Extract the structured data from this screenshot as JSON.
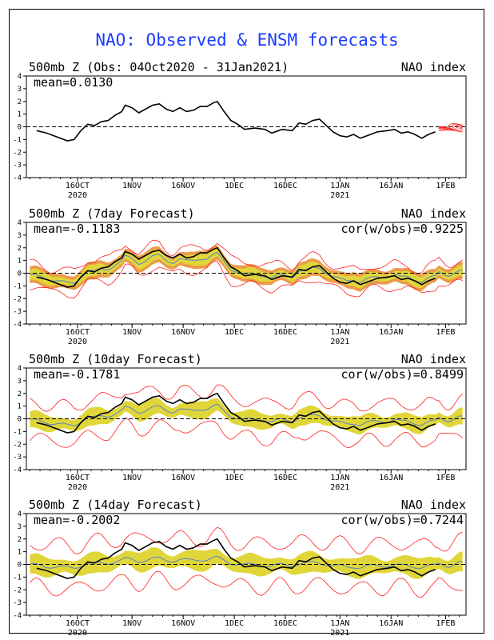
{
  "title": "NAO: Observed & ENSM forecasts",
  "colors": {
    "title": "#1a3bff",
    "observed": "#000000",
    "members": "#ff2020",
    "spread": "#e0d63a",
    "ensemble_mean": "#5a82c8",
    "outer_band": "#e88a2a",
    "zero_line": "#000000"
  },
  "x_axis": {
    "xlim": [
      0,
      129
    ],
    "ticks": [
      {
        "x": 15,
        "label": "16OCT",
        "year": "2020"
      },
      {
        "x": 31,
        "label": "1NOV",
        "year": ""
      },
      {
        "x": 46,
        "label": "16NOV",
        "year": ""
      },
      {
        "x": 61,
        "label": "1DEC",
        "year": ""
      },
      {
        "x": 76,
        "label": "16DEC",
        "year": ""
      },
      {
        "x": 92,
        "label": "1JAN",
        "year": "2021"
      },
      {
        "x": 107,
        "label": "16JAN",
        "year": ""
      },
      {
        "x": 123,
        "label": "1FEB",
        "year": ""
      }
    ]
  },
  "chart_data": [
    {
      "type": "line",
      "title": "500mb Z (Obs: 04Oct2020 - 31Jan2021)",
      "index_label": "NAO index",
      "mean_label": "mean=0.0130",
      "cor_label": "",
      "ylim": [
        -4,
        4
      ],
      "yticks": [
        4,
        3,
        2,
        1,
        0,
        -1,
        -2,
        -3,
        -4
      ],
      "series": [
        {
          "kind": "observed",
          "points": [
            [
              3,
              -0.3
            ],
            [
              6,
              -0.5
            ],
            [
              9,
              -0.8
            ],
            [
              12,
              -1.1
            ],
            [
              14,
              -1.0
            ],
            [
              16,
              -0.3
            ],
            [
              18,
              0.2
            ],
            [
              20,
              0.1
            ],
            [
              22,
              0.4
            ],
            [
              24,
              0.5
            ],
            [
              26,
              0.9
            ],
            [
              28,
              1.2
            ],
            [
              29,
              1.7
            ],
            [
              31,
              1.5
            ],
            [
              33,
              1.1
            ],
            [
              35,
              1.4
            ],
            [
              37,
              1.7
            ],
            [
              39,
              1.8
            ],
            [
              41,
              1.4
            ],
            [
              43,
              1.2
            ],
            [
              45,
              1.5
            ],
            [
              47,
              1.2
            ],
            [
              49,
              1.3
            ],
            [
              51,
              1.6
            ],
            [
              53,
              1.6
            ],
            [
              55,
              1.9
            ],
            [
              56,
              2.0
            ],
            [
              58,
              1.2
            ],
            [
              60,
              0.5
            ],
            [
              62,
              0.2
            ],
            [
              64,
              -0.2
            ],
            [
              67,
              -0.1
            ],
            [
              70,
              -0.2
            ],
            [
              72,
              -0.5
            ],
            [
              75,
              -0.2
            ],
            [
              78,
              -0.3
            ],
            [
              80,
              0.3
            ],
            [
              82,
              0.2
            ],
            [
              84,
              0.5
            ],
            [
              86,
              0.6
            ],
            [
              88,
              0.1
            ],
            [
              90,
              -0.4
            ],
            [
              92,
              -0.7
            ],
            [
              94,
              -0.8
            ],
            [
              96,
              -0.6
            ],
            [
              98,
              -0.9
            ],
            [
              100,
              -0.7
            ],
            [
              103,
              -0.4
            ],
            [
              106,
              -0.3
            ],
            [
              108,
              -0.2
            ],
            [
              110,
              -0.5
            ],
            [
              112,
              -0.4
            ],
            [
              114,
              -0.6
            ],
            [
              116,
              -0.9
            ],
            [
              118,
              -0.6
            ],
            [
              120,
              -0.4
            ]
          ]
        }
      ],
      "members_start": 121
    },
    {
      "type": "line",
      "title": "500mb Z (7day Forecast)",
      "index_label": "NAO index",
      "mean_label": "mean=-0.1183",
      "cor_label": "cor(w/obs)=0.9225",
      "ylim": [
        -4,
        4
      ],
      "yticks": [
        4,
        3,
        2,
        1,
        0,
        -1,
        -2,
        -3,
        -4
      ],
      "band_halfwidth": 0.35,
      "member_halfwidth": 0.9,
      "start_x": 1,
      "end_x": 128
    },
    {
      "type": "line",
      "title": "500mb Z (10day Forecast)",
      "index_label": "NAO index",
      "mean_label": "mean=-0.1781",
      "cor_label": "cor(w/obs)=0.8499",
      "ylim": [
        -4,
        4
      ],
      "yticks": [
        4,
        3,
        2,
        1,
        0,
        -1,
        -2,
        -3,
        -4
      ],
      "band_halfwidth": 0.55,
      "member_halfwidth": 1.4,
      "start_x": 1,
      "end_x": 128
    },
    {
      "type": "line",
      "title": "500mb Z (14day Forecast)",
      "index_label": "NAO index",
      "mean_label": "mean=-0.2002",
      "cor_label": "cor(w/obs)=0.7244",
      "ylim": [
        -4,
        4
      ],
      "yticks": [
        4,
        3,
        2,
        1,
        0,
        -1,
        -2,
        -3,
        -4
      ],
      "band_halfwidth": 0.65,
      "member_halfwidth": 1.7,
      "start_x": 1,
      "end_x": 128
    }
  ]
}
